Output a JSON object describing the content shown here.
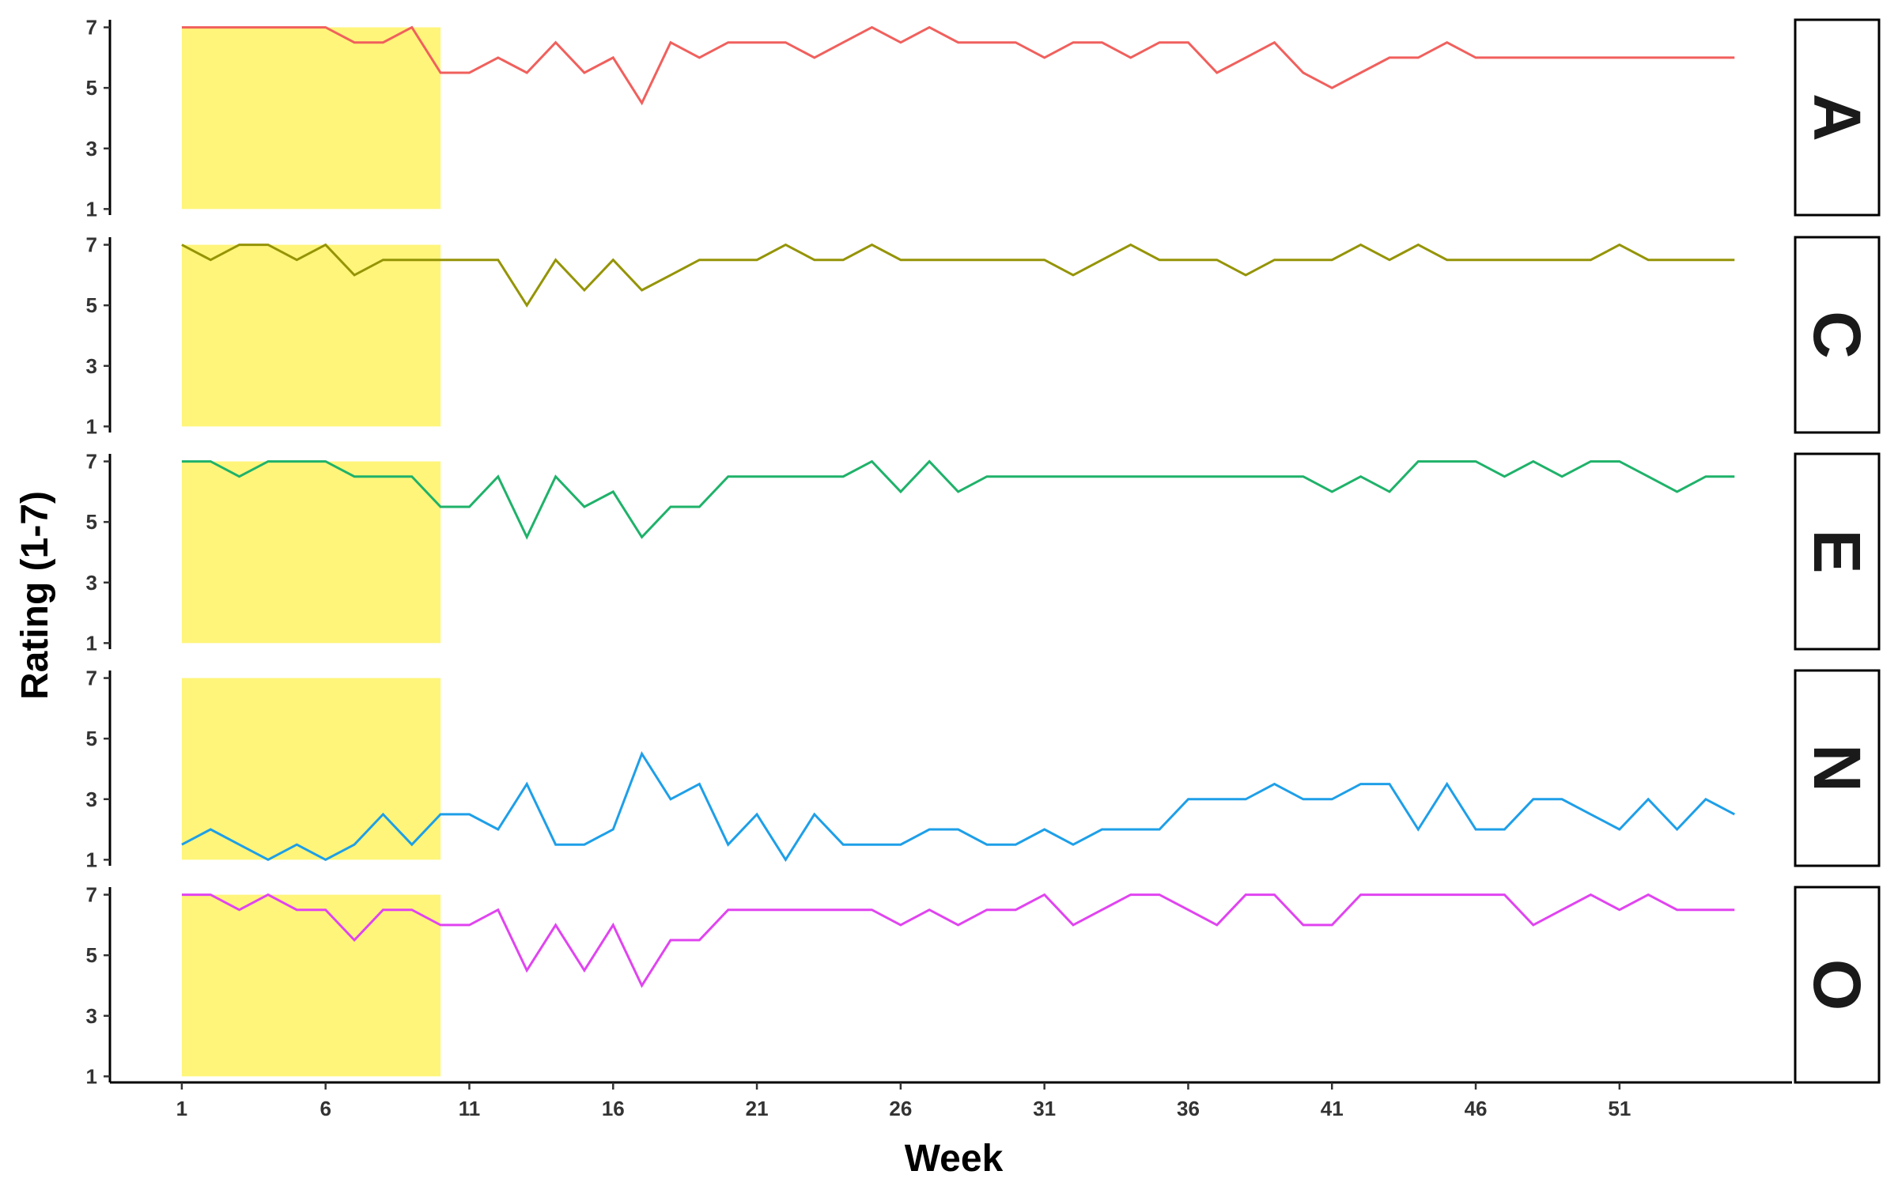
{
  "chart_data": {
    "type": "line",
    "xlabel": "Week",
    "ylabel": "Rating (1-7)",
    "x_ticks": [
      1,
      6,
      11,
      16,
      21,
      26,
      31,
      36,
      41,
      46,
      51
    ],
    "y_ticks": [
      1,
      3,
      5,
      7
    ],
    "xlim": [
      -1.5,
      57.0
    ],
    "ylim": [
      0.8,
      7.25
    ],
    "highlight": {
      "x_start": 1,
      "x_end": 10,
      "y_start": 1,
      "y_end": 7,
      "color": "#FFF57A"
    },
    "x": [
      1,
      2,
      3,
      4,
      5,
      6,
      7,
      8,
      9,
      10,
      11,
      12,
      13,
      14,
      15,
      16,
      17,
      18,
      19,
      20,
      21,
      22,
      23,
      24,
      25,
      26,
      27,
      28,
      29,
      30,
      31,
      32,
      33,
      34,
      35,
      36,
      37,
      38,
      39,
      40,
      41,
      42,
      43,
      44,
      45,
      46,
      47,
      48,
      49,
      50,
      51,
      52,
      53,
      54,
      55
    ],
    "series": [
      {
        "name": "A",
        "color": "#F0605D",
        "values": [
          7,
          7,
          7,
          7,
          7,
          7,
          6.5,
          6.5,
          7,
          5.5,
          5.5,
          6,
          5.5,
          6.5,
          5.5,
          6,
          4.5,
          6.5,
          6,
          6.5,
          6.5,
          6.5,
          6,
          6.5,
          7,
          6.5,
          7,
          6.5,
          6.5,
          6.5,
          6,
          6.5,
          6.5,
          6,
          6.5,
          6.5,
          5.5,
          6,
          6.5,
          5.5,
          5,
          5.5,
          6,
          6,
          6.5,
          6,
          6,
          6,
          6,
          6,
          6,
          6,
          6,
          6,
          6
        ]
      },
      {
        "name": "C",
        "color": "#959406",
        "values": [
          7,
          6.5,
          7,
          7,
          6.5,
          7,
          6,
          6.5,
          6.5,
          6.5,
          6.5,
          6.5,
          5,
          6.5,
          5.5,
          6.5,
          5.5,
          6,
          6.5,
          6.5,
          6.5,
          7,
          6.5,
          6.5,
          7,
          6.5,
          6.5,
          6.5,
          6.5,
          6.5,
          6.5,
          6,
          6.5,
          7,
          6.5,
          6.5,
          6.5,
          6,
          6.5,
          6.5,
          6.5,
          7,
          6.5,
          7,
          6.5,
          6.5,
          6.5,
          6.5,
          6.5,
          6.5,
          7,
          6.5,
          6.5,
          6.5,
          6.5
        ]
      },
      {
        "name": "E",
        "color": "#1FB26A",
        "values": [
          7,
          7,
          6.5,
          7,
          7,
          7,
          6.5,
          6.5,
          6.5,
          5.5,
          5.5,
          6.5,
          4.5,
          6.5,
          5.5,
          6,
          4.5,
          5.5,
          5.5,
          6.5,
          6.5,
          6.5,
          6.5,
          6.5,
          7,
          6,
          7,
          6,
          6.5,
          6.5,
          6.5,
          6.5,
          6.5,
          6.5,
          6.5,
          6.5,
          6.5,
          6.5,
          6.5,
          6.5,
          6,
          6.5,
          6,
          7,
          7,
          7,
          6.5,
          7,
          6.5,
          7,
          7,
          6.5,
          6,
          6.5,
          6.5
        ]
      },
      {
        "name": "N",
        "color": "#1E9FE8",
        "values": [
          1.5,
          2,
          1.5,
          1,
          1.5,
          1,
          1.5,
          2.5,
          1.5,
          2.5,
          2.5,
          2,
          3.5,
          1.5,
          1.5,
          2,
          4.5,
          3,
          3.5,
          1.5,
          2.5,
          1,
          2.5,
          1.5,
          1.5,
          1.5,
          2,
          2,
          1.5,
          1.5,
          2,
          1.5,
          2,
          2,
          2,
          3,
          3,
          3,
          3.5,
          3,
          3,
          3.5,
          3.5,
          2,
          3.5,
          2,
          2,
          3,
          3,
          2.5,
          2,
          3,
          2,
          3,
          2.5
        ]
      },
      {
        "name": "O",
        "color": "#E044F0",
        "values": [
          7,
          7,
          6.5,
          7,
          6.5,
          6.5,
          5.5,
          6.5,
          6.5,
          6,
          6,
          6.5,
          4.5,
          6,
          4.5,
          6,
          4,
          5.5,
          5.5,
          6.5,
          6.5,
          6.5,
          6.5,
          6.5,
          6.5,
          6,
          6.5,
          6,
          6.5,
          6.5,
          7,
          6,
          6.5,
          7,
          7,
          6.5,
          6,
          7,
          7,
          6,
          6,
          7,
          7,
          7,
          7,
          7,
          7,
          6,
          6.5,
          7,
          6.5,
          7,
          6.5,
          6.5,
          6.5
        ]
      }
    ]
  }
}
